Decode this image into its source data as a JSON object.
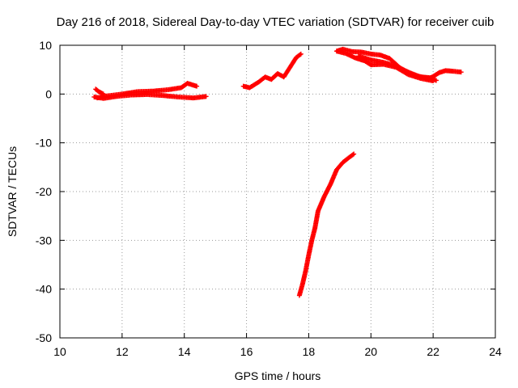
{
  "chart_data": {
    "type": "scatter",
    "title": "Day 216 of 2018, Sidereal Day-to-day VTEC variation (SDTVAR) for receiver cuib",
    "xlabel": "GPS time / hours",
    "ylabel": "SDTVAR / TECUs",
    "xlim": [
      10,
      24
    ],
    "ylim": [
      -50,
      10
    ],
    "xticks": [
      10,
      12,
      14,
      16,
      18,
      20,
      22,
      24
    ],
    "yticks": [
      10,
      0,
      -10,
      -20,
      -30,
      -40,
      -50
    ],
    "xtick_labels": [
      "10",
      "12",
      "14",
      "16",
      "18",
      "20",
      "22",
      "24"
    ],
    "ytick_labels": [
      "10",
      "0",
      "-10",
      "-20",
      "-30",
      "-40",
      "-50"
    ],
    "grid": true,
    "marker": "plus",
    "series": [
      {
        "name": "SDTVAR",
        "color": "#ff0000",
        "segments": [
          {
            "name": "track-morning-upper",
            "x": [
              11.2,
              11.5,
              12.0,
              12.5,
              13.0,
              13.5,
              13.9,
              14.1,
              14.4
            ],
            "y": [
              -0.8,
              -0.4,
              0.0,
              0.5,
              0.6,
              0.9,
              1.3,
              2.2,
              1.6
            ]
          },
          {
            "name": "track-morning-lower",
            "x": [
              11.1,
              11.4,
              11.8,
              12.3,
              12.8,
              13.3,
              13.8,
              14.3,
              14.7
            ],
            "y": [
              -0.6,
              -0.9,
              -0.5,
              -0.2,
              -0.1,
              -0.3,
              -0.6,
              -0.8,
              -0.5
            ]
          },
          {
            "name": "track-morning-hook",
            "x": [
              11.15,
              11.25,
              11.4
            ],
            "y": [
              1.0,
              0.5,
              0.0
            ]
          },
          {
            "name": "track-midday",
            "x": [
              15.9,
              16.1,
              16.4,
              16.6,
              16.8,
              17.0,
              17.2,
              17.4,
              17.6,
              17.75
            ],
            "y": [
              1.6,
              1.3,
              2.5,
              3.5,
              3.0,
              4.2,
              3.5,
              5.5,
              7.5,
              8.2
            ]
          },
          {
            "name": "track-steep-rise",
            "x": [
              17.7,
              17.8,
              17.9,
              18.0,
              18.1,
              18.2,
              18.3,
              18.5,
              18.7,
              18.9,
              19.1,
              19.3,
              19.45
            ],
            "y": [
              -41.3,
              -39.0,
              -36.3,
              -33.0,
              -30.0,
              -27.5,
              -24.0,
              -21.0,
              -18.5,
              -15.5,
              -14.0,
              -13.0,
              -12.3
            ]
          },
          {
            "name": "track-evening-upper",
            "x": [
              18.9,
              19.1,
              19.4,
              19.7,
              20.0,
              20.3,
              20.6,
              21.0,
              21.4,
              21.8,
              22.1
            ],
            "y": [
              8.8,
              9.2,
              8.7,
              8.6,
              8.2,
              8.0,
              7.3,
              5.0,
              3.8,
              3.3,
              2.8
            ]
          },
          {
            "name": "track-evening-lower",
            "x": [
              18.9,
              19.2,
              19.5,
              19.8,
              20.0,
              20.4,
              20.8,
              21.2,
              21.6,
              22.0
            ],
            "y": [
              8.8,
              8.3,
              7.4,
              6.8,
              6.0,
              6.1,
              5.5,
              4.0,
              3.2,
              2.7
            ]
          },
          {
            "name": "track-evening-middle",
            "x": [
              19.6,
              20.0,
              20.4,
              20.8,
              21.2,
              21.6,
              22.0
            ],
            "y": [
              7.8,
              7.0,
              6.5,
              5.8,
              4.5,
              3.5,
              3.3
            ]
          },
          {
            "name": "track-late-evening",
            "x": [
              21.8,
              22.0,
              22.2,
              22.4,
              22.6,
              22.9
            ],
            "y": [
              3.0,
              3.6,
              4.4,
              4.8,
              4.7,
              4.5
            ]
          }
        ]
      }
    ]
  }
}
